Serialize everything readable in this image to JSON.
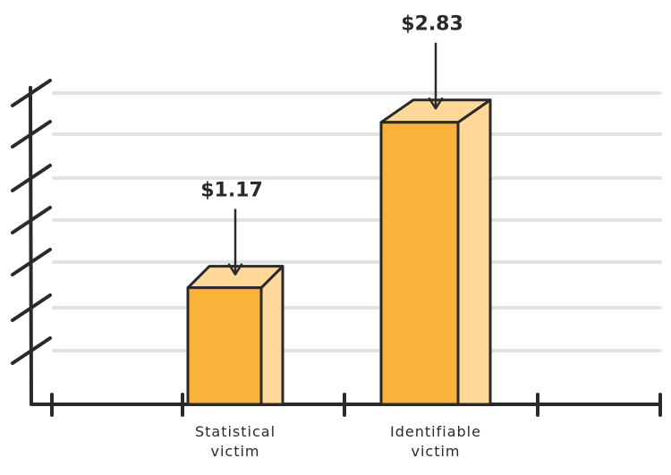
{
  "chart_data": {
    "type": "bar",
    "categories": [
      "Statistical\nvictim",
      "Identifiable\nvictim"
    ],
    "values": [
      1.17,
      2.83
    ],
    "value_labels": [
      "$1.17",
      "$2.83"
    ],
    "title": "",
    "xlabel": "",
    "ylabel": "",
    "grid": true,
    "colors": {
      "bar_front": "#F9B33A",
      "bar_side": "#FFD89A",
      "outline": "#2a2a2a",
      "grid": "#e2e2e2"
    }
  }
}
